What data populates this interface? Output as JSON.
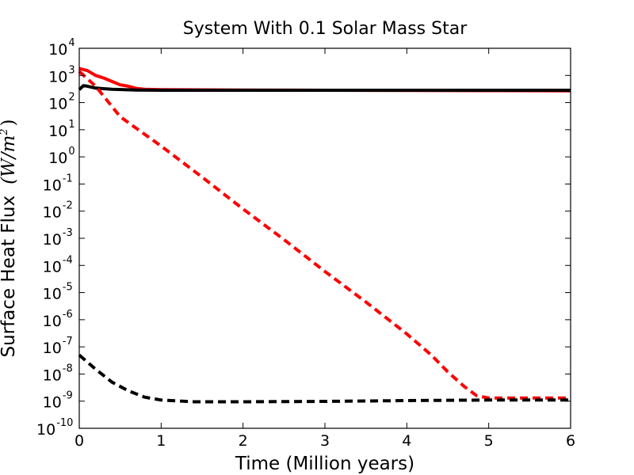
{
  "chart_data": {
    "type": "line",
    "title": "System With 0.1 Solar Mass Star",
    "xlabel": "Time  (Million years)",
    "ylabel": "Surface Heat Flux",
    "ylabel_unit": "(W/m",
    "ylabel_unit_exp": "2",
    "ylabel_unit_close": ")",
    "xlim": [
      0,
      6
    ],
    "ylim_log10": [
      -10,
      4
    ],
    "yscale": "log",
    "x_ticks": [
      {
        "value": 0,
        "label": "0"
      },
      {
        "value": 1,
        "label": "1"
      },
      {
        "value": 2,
        "label": "2"
      },
      {
        "value": 3,
        "label": "3"
      },
      {
        "value": 4,
        "label": "4"
      },
      {
        "value": 5,
        "label": "5"
      },
      {
        "value": 6,
        "label": "6"
      }
    ],
    "y_ticks": [
      {
        "exp": -10,
        "base": "10",
        "sup": "-10"
      },
      {
        "exp": -9,
        "base": "10",
        "sup": "-9"
      },
      {
        "exp": -8,
        "base": "10",
        "sup": "-8"
      },
      {
        "exp": -7,
        "base": "10",
        "sup": "-7"
      },
      {
        "exp": -6,
        "base": "10",
        "sup": "-6"
      },
      {
        "exp": -5,
        "base": "10",
        "sup": "-5"
      },
      {
        "exp": -4,
        "base": "10",
        "sup": "-4"
      },
      {
        "exp": -3,
        "base": "10",
        "sup": "-3"
      },
      {
        "exp": -2,
        "base": "10",
        "sup": "-2"
      },
      {
        "exp": -1,
        "base": "10",
        "sup": "-1"
      },
      {
        "exp": 0,
        "base": "10",
        "sup": "0"
      },
      {
        "exp": 1,
        "base": "10",
        "sup": "1"
      },
      {
        "exp": 2,
        "base": "10",
        "sup": "2"
      },
      {
        "exp": 3,
        "base": "10",
        "sup": "3"
      },
      {
        "exp": 4,
        "base": "10",
        "sup": "4"
      }
    ],
    "series": [
      {
        "name": "red-solid",
        "color": "#ff0000",
        "style": "solid",
        "points": [
          [
            0.0,
            1800
          ],
          [
            0.1,
            1500
          ],
          [
            0.2,
            1000
          ],
          [
            0.3,
            800
          ],
          [
            0.4,
            600
          ],
          [
            0.5,
            450
          ],
          [
            0.6,
            400
          ],
          [
            0.7,
            330
          ],
          [
            0.8,
            310
          ],
          [
            1.0,
            300
          ],
          [
            1.5,
            295
          ],
          [
            2.0,
            290
          ],
          [
            3.0,
            285
          ],
          [
            4.0,
            280
          ],
          [
            5.0,
            275
          ],
          [
            6.0,
            270
          ]
        ]
      },
      {
        "name": "black-solid",
        "color": "#000000",
        "style": "solid",
        "points": [
          [
            0.0,
            300
          ],
          [
            0.05,
            420
          ],
          [
            0.1,
            400
          ],
          [
            0.2,
            340
          ],
          [
            0.4,
            310
          ],
          [
            0.7,
            290
          ],
          [
            1.0,
            285
          ],
          [
            2.0,
            285
          ],
          [
            3.0,
            285
          ],
          [
            4.0,
            285
          ],
          [
            5.0,
            285
          ],
          [
            6.0,
            285
          ]
        ]
      },
      {
        "name": "red-dashed",
        "color": "#ff0000",
        "style": "dashed",
        "points": [
          [
            0.0,
            1400
          ],
          [
            0.2,
            400
          ],
          [
            0.5,
            30
          ],
          [
            1.0,
            2.5
          ],
          [
            1.5,
            0.18
          ],
          [
            2.0,
            0.012
          ],
          [
            2.5,
            0.0009
          ],
          [
            3.0,
            6e-05
          ],
          [
            3.5,
            4.5e-06
          ],
          [
            4.0,
            3e-07
          ],
          [
            4.3,
            5e-08
          ],
          [
            4.5,
            1.2e-08
          ],
          [
            4.7,
            3.5e-09
          ],
          [
            4.85,
            1.6e-09
          ],
          [
            5.0,
            1.3e-09
          ],
          [
            5.5,
            1.3e-09
          ],
          [
            6.0,
            1.3e-09
          ]
        ]
      },
      {
        "name": "black-dashed",
        "color": "#000000",
        "style": "dashed",
        "points": [
          [
            0.0,
            5e-08
          ],
          [
            0.2,
            1.5e-08
          ],
          [
            0.4,
            5e-09
          ],
          [
            0.6,
            2.4e-09
          ],
          [
            0.8,
            1.4e-09
          ],
          [
            1.0,
            1.1e-09
          ],
          [
            1.4,
            9.5e-10
          ],
          [
            2.0,
            9.5e-10
          ],
          [
            3.0,
            9.8e-10
          ],
          [
            4.0,
            1.05e-09
          ],
          [
            5.0,
            1.1e-09
          ],
          [
            6.0,
            1.1e-09
          ]
        ]
      }
    ]
  }
}
